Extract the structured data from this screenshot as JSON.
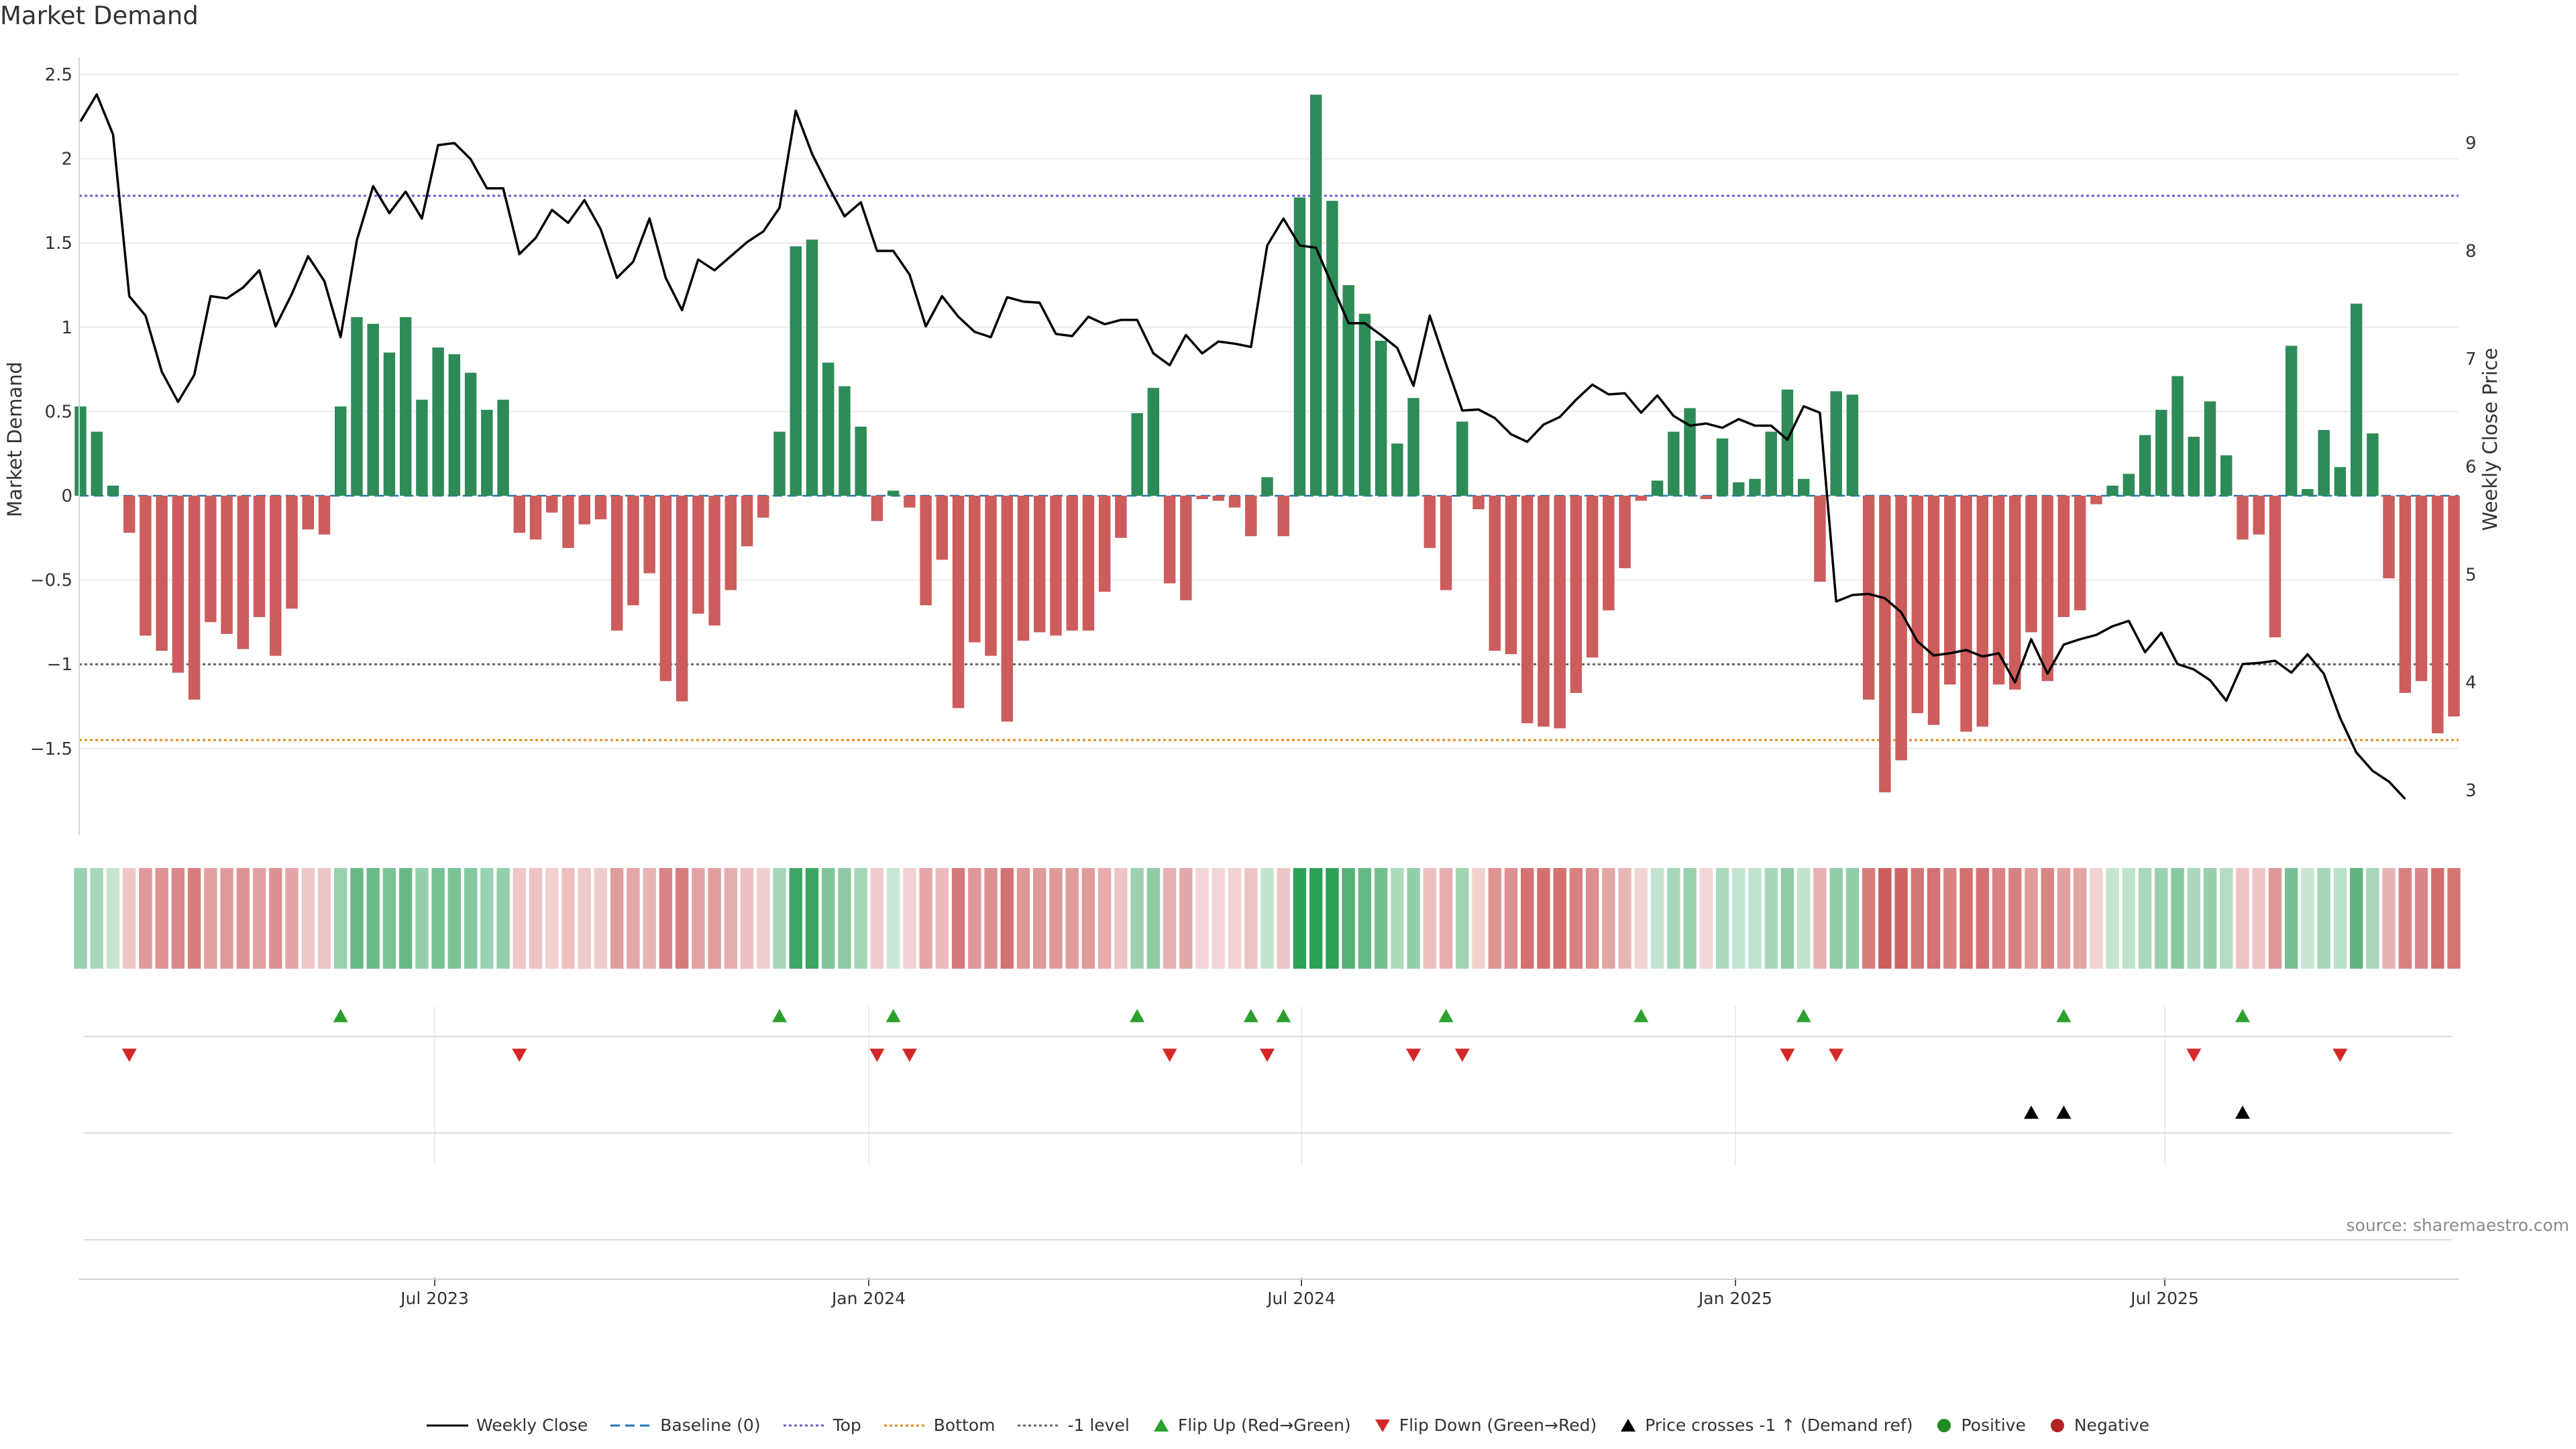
{
  "title": "Market Demand",
  "source_note": "source: sharemaestro.com",
  "chart_data": {
    "type": "bar+line",
    "title": "Market Demand",
    "ylabel_left": "Market Demand",
    "ylabel_right": "Weekly Close Price",
    "ylim_left": [
      -2.0,
      2.5
    ],
    "ylim_right": [
      2.8,
      9.6
    ],
    "yticks_left": [
      "2.5",
      "2",
      "1.5",
      "1",
      "0.5",
      "0",
      "−0.5",
      "−1",
      "−1.5"
    ],
    "yticks_right": [
      "9",
      "8",
      "7",
      "6",
      "5",
      "4",
      "3"
    ],
    "x_tick_labels": [
      "Jul 2023",
      "Jan 2024",
      "Jul 2024",
      "Jan 2025",
      "Jul 2025"
    ],
    "reference_levels": {
      "baseline": 0,
      "top": 1.78,
      "minus_one": -1.0,
      "bottom": -1.45
    },
    "grid": true,
    "legend_placement": "bottom-center",
    "colors": {
      "positive": "#2e8b57",
      "negative": "#cd5c5c",
      "price": "#000000",
      "top": "#6a5acd",
      "bottom": "#e08a1e",
      "minus_one": "#666666",
      "baseline": "#1f77b4",
      "flip_up": "#2ca02c",
      "flip_down": "#d62728",
      "price_cross": "#000000",
      "pos_dot": "#228b22",
      "neg_dot": "#b22222"
    },
    "series": [
      {
        "name": "Market Demand",
        "values": [
          0.53,
          0.38,
          0.06,
          -0.22,
          -0.83,
          -0.92,
          -1.05,
          -1.21,
          -0.75,
          -0.82,
          -0.91,
          -0.72,
          -0.95,
          -0.67,
          -0.2,
          -0.23,
          0.53,
          1.06,
          1.02,
          0.85,
          1.06,
          0.57,
          0.88,
          0.84,
          0.73,
          0.51,
          0.57,
          -0.22,
          -0.26,
          -0.1,
          -0.31,
          -0.17,
          -0.14,
          -0.8,
          -0.65,
          -0.46,
          -1.1,
          -1.22,
          -0.7,
          -0.77,
          -0.56,
          -0.3,
          -0.13,
          0.38,
          1.48,
          1.52,
          0.79,
          0.65,
          0.41,
          -0.15,
          0.03,
          -0.07,
          -0.65,
          -0.38,
          -1.26,
          -0.87,
          -0.95,
          -1.34,
          -0.86,
          -0.81,
          -0.83,
          -0.8,
          -0.8,
          -0.57,
          -0.25,
          0.49,
          0.64,
          -0.52,
          -0.62,
          -0.02,
          -0.03,
          -0.07,
          -0.24,
          0.11,
          -0.24,
          1.77,
          2.38,
          1.75,
          1.25,
          1.08,
          0.92,
          0.31,
          0.58,
          -0.31,
          -0.56,
          0.44,
          -0.08,
          -0.92,
          -0.94,
          -1.35,
          -1.37,
          -1.38,
          -1.17,
          -0.96,
          -0.68,
          -0.43,
          -0.03,
          0.09,
          0.38,
          0.52,
          -0.02,
          0.34,
          0.08,
          0.1,
          0.38,
          0.63,
          0.1,
          -0.51,
          0.62,
          0.6,
          -1.21,
          -1.76,
          -1.57,
          -1.29,
          -1.36,
          -1.12,
          -1.4,
          -1.37,
          -1.12,
          -1.15,
          -0.81,
          -1.1,
          -0.72,
          -0.68,
          -0.05,
          0.06,
          0.13,
          0.36,
          0.51,
          0.71,
          0.35,
          0.56,
          0.24,
          -0.26,
          -0.23,
          -0.84,
          0.89,
          0.04,
          0.39,
          0.17,
          1.14,
          0.37,
          -0.49,
          -1.17,
          -1.1,
          -1.41,
          -1.31
        ]
      },
      {
        "name": "Weekly Close",
        "values": [
          9.2,
          9.45,
          9.08,
          7.58,
          7.4,
          6.88,
          6.6,
          6.85,
          7.58,
          7.56,
          7.66,
          7.82,
          7.3,
          7.6,
          7.95,
          7.72,
          7.2,
          8.1,
          8.6,
          8.35,
          8.55,
          8.3,
          8.98,
          9.0,
          8.85,
          8.58,
          8.58,
          7.97,
          8.12,
          8.38,
          8.26,
          8.47,
          8.2,
          7.75,
          7.9,
          8.3,
          7.75,
          7.45,
          7.92,
          7.82,
          7.95,
          8.08,
          8.18,
          8.4,
          9.3,
          8.9,
          8.6,
          8.32,
          8.45,
          8.0,
          8.0,
          7.78,
          7.3,
          7.58,
          7.39,
          7.25,
          7.2,
          7.57,
          7.53,
          7.52,
          7.23,
          7.21,
          7.39,
          7.32,
          7.36,
          7.36,
          7.05,
          6.94,
          7.22,
          7.05,
          7.16,
          7.14,
          7.11,
          8.05,
          8.3,
          8.05,
          8.03,
          7.68,
          7.33,
          7.33,
          7.22,
          7.1,
          6.75,
          7.4,
          6.95,
          6.52,
          6.53,
          6.45,
          6.3,
          6.23,
          6.39,
          6.46,
          6.62,
          6.76,
          6.67,
          6.68,
          6.5,
          6.66,
          6.47,
          6.38,
          6.4,
          6.36,
          6.44,
          6.38,
          6.38,
          6.25,
          6.56,
          6.5,
          4.75,
          4.81,
          4.82,
          4.78,
          4.65,
          4.38,
          4.25,
          4.27,
          4.3,
          4.24,
          4.27,
          4.0,
          4.4,
          4.08,
          4.35,
          4.4,
          4.44,
          4.52,
          4.57,
          4.28,
          4.46,
          4.17,
          4.12,
          4.02,
          3.83,
          4.17,
          4.18,
          4.2,
          4.09,
          4.26,
          4.08,
          3.67,
          3.35,
          3.18,
          3.08,
          2.92
        ]
      }
    ],
    "signals": {
      "flip_up_indices": [
        16,
        43,
        50,
        65,
        72,
        74,
        84,
        96,
        106,
        122,
        133
      ],
      "flip_down_indices": [
        3,
        27,
        49,
        51,
        67,
        73,
        82,
        85,
        105,
        108,
        130,
        139
      ],
      "price_cross_indices": [
        120,
        122,
        133
      ]
    }
  },
  "legend": [
    {
      "label": "Weekly Close",
      "kind": "line",
      "color": "#000000",
      "dash": ""
    },
    {
      "label": "Baseline (0)",
      "kind": "line",
      "color": "#1f77b4",
      "dash": "14,8"
    },
    {
      "label": "Top",
      "kind": "line",
      "color": "#6a5acd",
      "dash": "4,4"
    },
    {
      "label": "Bottom",
      "kind": "line",
      "color": "#e08a1e",
      "dash": "4,4"
    },
    {
      "label": "-1 level",
      "kind": "line",
      "color": "#666666",
      "dash": "4,4"
    },
    {
      "label": "Flip Up (Red→Green)",
      "kind": "tri-up",
      "color": "#2ca02c"
    },
    {
      "label": "Flip Down (Green→Red)",
      "kind": "tri-down",
      "color": "#d62728"
    },
    {
      "label": "Price crosses -1 ↑ (Demand ref)",
      "kind": "tri-up",
      "color": "#000000"
    },
    {
      "label": "Positive",
      "kind": "dot",
      "color": "#228b22"
    },
    {
      "label": "Negative",
      "kind": "dot",
      "color": "#b22222"
    }
  ]
}
